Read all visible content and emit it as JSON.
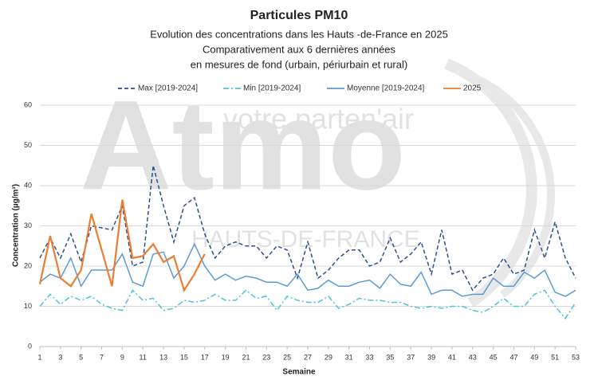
{
  "chart_data": {
    "type": "line",
    "title": "Particules PM10",
    "subtitle": [
      "Evolution des concentrations dans les Hauts -de-France en 2025",
      "Comparativement aux 6 dernières années",
      "en mesures de fond (urbain, périurbain et rural)"
    ],
    "watermark": [
      "Atmo",
      "votre parten'air",
      "HAUTS-DE-FRANCE"
    ],
    "xlabel": "Semaine",
    "ylabel": "Concentration (µg/m³)",
    "x": [
      1,
      2,
      3,
      4,
      5,
      6,
      7,
      8,
      9,
      10,
      11,
      12,
      13,
      14,
      15,
      16,
      17,
      18,
      19,
      20,
      21,
      22,
      23,
      24,
      25,
      26,
      27,
      28,
      29,
      30,
      31,
      32,
      33,
      34,
      35,
      36,
      37,
      38,
      39,
      40,
      41,
      42,
      43,
      44,
      45,
      46,
      47,
      48,
      49,
      50,
      51,
      52,
      53
    ],
    "xlim": [
      1,
      53
    ],
    "xticks": [
      1,
      3,
      5,
      7,
      9,
      11,
      13,
      15,
      17,
      19,
      21,
      23,
      25,
      27,
      29,
      31,
      33,
      35,
      37,
      39,
      41,
      43,
      45,
      47,
      49,
      51,
      53
    ],
    "ylim": [
      0,
      60
    ],
    "yticks": [
      0,
      10,
      20,
      30,
      40,
      50,
      60
    ],
    "grid": true,
    "legend": "top",
    "series": [
      {
        "name": "Max [2019-2024]",
        "color": "#2f4f8f",
        "dash": "dashed",
        "values": [
          22,
          27,
          22,
          28,
          21,
          30,
          29.5,
          29,
          35,
          20,
          21,
          45,
          35,
          26,
          35,
          37,
          28,
          22,
          25,
          26,
          25,
          25,
          22,
          25,
          24,
          17,
          26,
          17,
          19,
          22,
          24,
          24,
          20,
          21,
          27,
          21,
          23,
          26,
          18,
          29,
          18,
          19,
          14,
          17,
          18,
          22,
          18,
          19,
          29,
          22,
          31,
          22,
          17
        ]
      },
      {
        "name": "Min [2019-2024]",
        "color": "#4fc0e0",
        "dash": "dashdot",
        "values": [
          10,
          13,
          10.5,
          12.5,
          11.5,
          12.5,
          10.5,
          9.5,
          9,
          14,
          11.5,
          12,
          9,
          9.5,
          11.5,
          11,
          11.5,
          13,
          11.5,
          11.5,
          14,
          12,
          12.5,
          9,
          12.5,
          11.5,
          11,
          11,
          12.5,
          9.5,
          10.5,
          12,
          11.5,
          11.5,
          11,
          11,
          10,
          9.5,
          10,
          9.5,
          10,
          10,
          9,
          8.5,
          10,
          12,
          10,
          10,
          13,
          14,
          10,
          7,
          11
        ]
      },
      {
        "name": "Moyenne [2019-2024]",
        "color": "#5b9bd5",
        "dash": "solid",
        "values": [
          16,
          18,
          17,
          22,
          15,
          19,
          19,
          19,
          23,
          16,
          15,
          23,
          23.5,
          17,
          20,
          25.5,
          20,
          16.5,
          18,
          16.5,
          17.5,
          17,
          16,
          16,
          15,
          18,
          14,
          14.5,
          16.5,
          15,
          15,
          16,
          16.5,
          14.5,
          18,
          15.5,
          15,
          18.5,
          13,
          14,
          14,
          12.5,
          13,
          13,
          17,
          15,
          15,
          18.5,
          17,
          19,
          13.5,
          12.5,
          14
        ]
      },
      {
        "name": "2025",
        "color": "#ed7d31",
        "dash": "solid",
        "values": [
          15.5,
          27.5,
          17,
          15,
          19,
          33,
          24,
          15,
          36.5,
          22,
          22.5,
          25.5,
          21,
          22.5,
          14,
          18,
          23,
          null,
          null,
          null,
          null,
          null,
          null,
          null,
          null,
          null,
          null,
          null,
          null,
          null,
          null,
          null,
          null,
          null,
          null,
          null,
          null,
          null,
          null,
          null,
          null,
          null,
          null,
          null,
          null,
          null,
          null,
          null,
          null,
          null,
          null,
          null,
          null
        ]
      }
    ]
  }
}
